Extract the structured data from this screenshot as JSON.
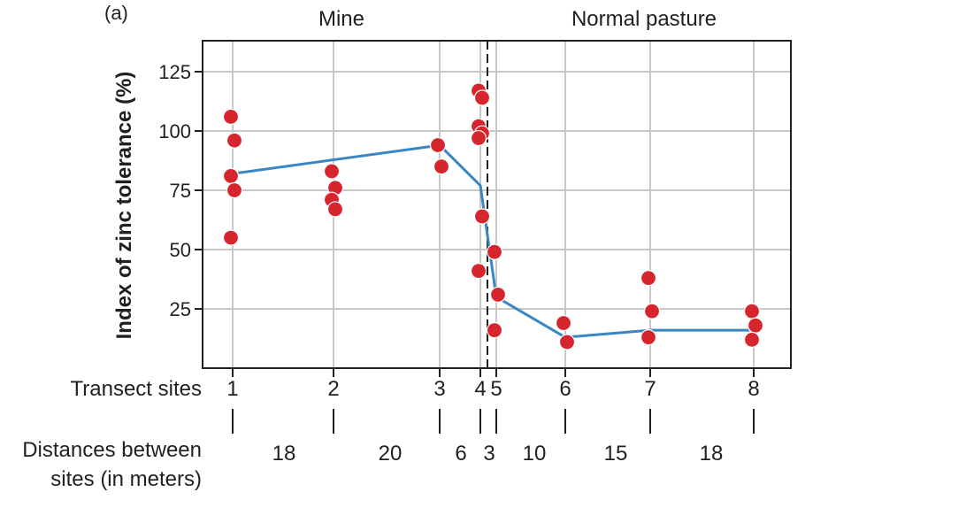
{
  "chart_data": {
    "type": "scatter",
    "panel_label": "(a)",
    "regions": [
      "Mine",
      "Normal pasture"
    ],
    "boundary_between_sites": [
      4,
      5
    ],
    "ylabel": "Index of zinc tolerance (%)",
    "ylim": [
      0,
      135
    ],
    "yticks": [
      25,
      50,
      75,
      100,
      125
    ],
    "grid": true,
    "xlabel": "Transect sites",
    "sites": [
      1,
      2,
      3,
      4,
      5,
      6,
      7,
      8
    ],
    "distance_label": [
      "Distances between",
      "sites (in meters)"
    ],
    "distances_m": [
      18,
      20,
      6,
      3,
      10,
      15,
      18
    ],
    "points": [
      {
        "site": 1,
        "values": [
          106,
          96,
          81,
          75,
          55
        ]
      },
      {
        "site": 2,
        "values": [
          83,
          76,
          71,
          67
        ]
      },
      {
        "site": 3,
        "values": [
          94,
          85
        ]
      },
      {
        "site": 4,
        "values": [
          117,
          114,
          102,
          99,
          97,
          64,
          41
        ]
      },
      {
        "site": 5,
        "values": [
          49,
          31,
          16
        ]
      },
      {
        "site": 6,
        "values": [
          19,
          11
        ]
      },
      {
        "site": 7,
        "values": [
          38,
          24,
          13
        ]
      },
      {
        "site": 8,
        "values": [
          24,
          18,
          12
        ]
      }
    ],
    "mean_line": [
      {
        "site": 1,
        "value": 82
      },
      {
        "site": 3,
        "value": 94
      },
      {
        "site": 4,
        "value": 77
      },
      {
        "site": 5,
        "value": 30
      },
      {
        "site": 6,
        "value": 13
      },
      {
        "site": 7,
        "value": 16
      },
      {
        "site": 8,
        "value": 16
      }
    ],
    "colors": {
      "points": "#d7252d",
      "line": "#3a86c2",
      "grid": "#c8c8c8",
      "axis": "#231f20"
    }
  }
}
